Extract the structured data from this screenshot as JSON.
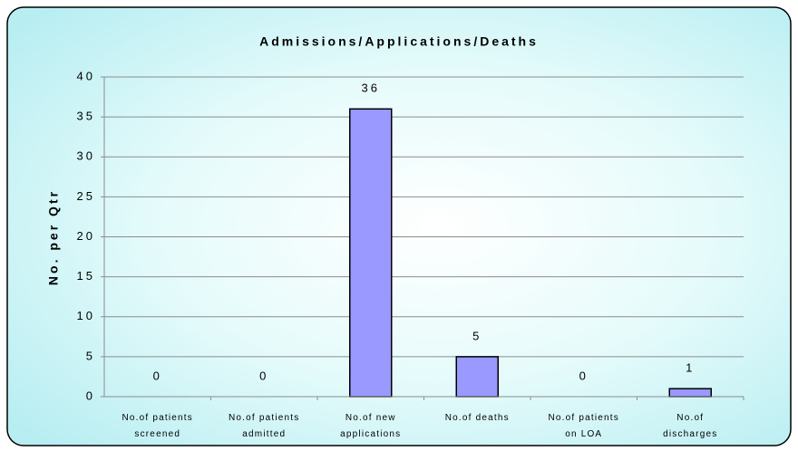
{
  "chart_data": {
    "type": "bar",
    "title": "Admissions/Applications/Deaths",
    "y_label": "No. per Qtr",
    "categories": [
      "No.of patients\nscreened",
      "No.of patients\nadmitted",
      "No.of new\napplications",
      "No.of deaths",
      "No.of patients\non LOA",
      "No.of\ndischarges"
    ],
    "values": [
      0,
      0,
      36,
      5,
      0,
      1
    ],
    "color": "#9999ff",
    "ylim": [
      0,
      40
    ],
    "yticks": [
      0,
      5,
      10,
      15,
      20,
      25,
      30,
      35,
      40
    ],
    "grid": true
  }
}
